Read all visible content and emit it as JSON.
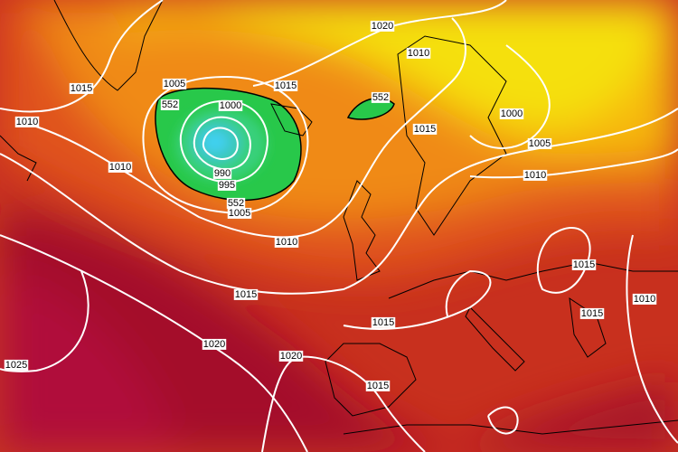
{
  "isobar_labels": [
    "1020",
    "1010",
    "1015",
    "1005",
    "1015",
    "552",
    "1000",
    "552",
    "1010",
    "1015",
    "1000",
    "1005",
    "1010",
    "990",
    "995",
    "552",
    "1005",
    "1010",
    "1010",
    "1015",
    "1015",
    "1010",
    "1015",
    "1015",
    "1020",
    "1025",
    "1020",
    "1015"
  ]
}
